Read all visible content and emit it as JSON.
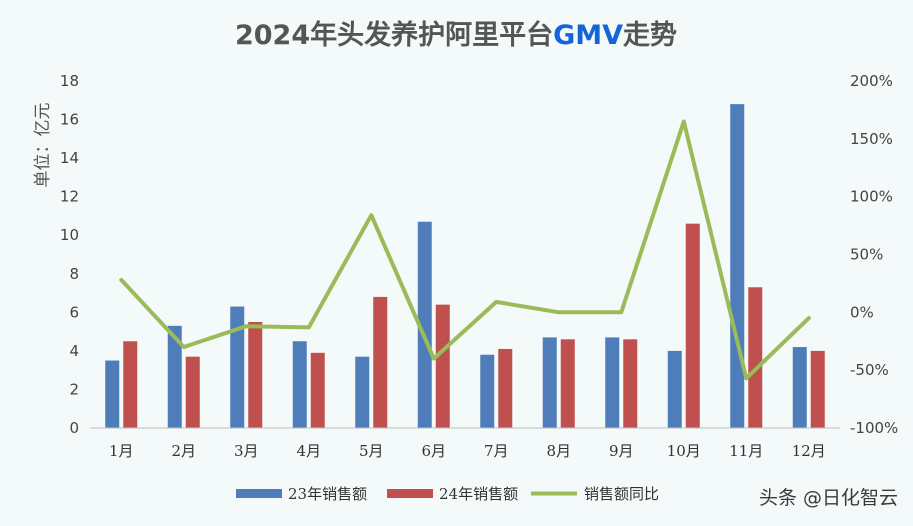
{
  "chart_data": {
    "type": "bar",
    "title": "2024年头发养护阿里平台GMV走势",
    "title_parts": [
      "2024年头发养护阿里平台",
      "GMV",
      "走势"
    ],
    "ylabel": "单位：亿元",
    "categories": [
      "1月",
      "2月",
      "3月",
      "4月",
      "5月",
      "6月",
      "7月",
      "8月",
      "9月",
      "10月",
      "11月",
      "12月"
    ],
    "ylim": [
      0,
      18
    ],
    "y_ticks": [
      0,
      2,
      4,
      6,
      8,
      10,
      12,
      14,
      16,
      18
    ],
    "y2lim": [
      -100,
      200
    ],
    "y2_ticks": [
      "-100%",
      "-50%",
      "0%",
      "50%",
      "100%",
      "150%",
      "200%"
    ],
    "grid": false,
    "legend_position": "bottom",
    "series": [
      {
        "name": "23年销售额",
        "type": "bar",
        "color": "#4e7dba",
        "axis": "left",
        "values": [
          3.5,
          5.3,
          6.3,
          4.5,
          3.7,
          10.7,
          3.8,
          4.7,
          4.7,
          4.0,
          16.8,
          4.2
        ]
      },
      {
        "name": "24年销售额",
        "type": "bar",
        "color": "#c0504d",
        "axis": "left",
        "values": [
          4.5,
          3.7,
          5.5,
          3.9,
          6.8,
          6.4,
          4.1,
          4.6,
          4.6,
          10.6,
          7.3,
          4.0
        ]
      },
      {
        "name": "销售额同比",
        "type": "line",
        "color": "#9bbb59",
        "axis": "right",
        "unit": "%",
        "values": [
          28,
          -30,
          -12,
          -13,
          84,
          -40,
          9,
          0,
          0,
          165,
          -57,
          -5
        ]
      }
    ]
  },
  "watermark": "头条 @日化智云"
}
